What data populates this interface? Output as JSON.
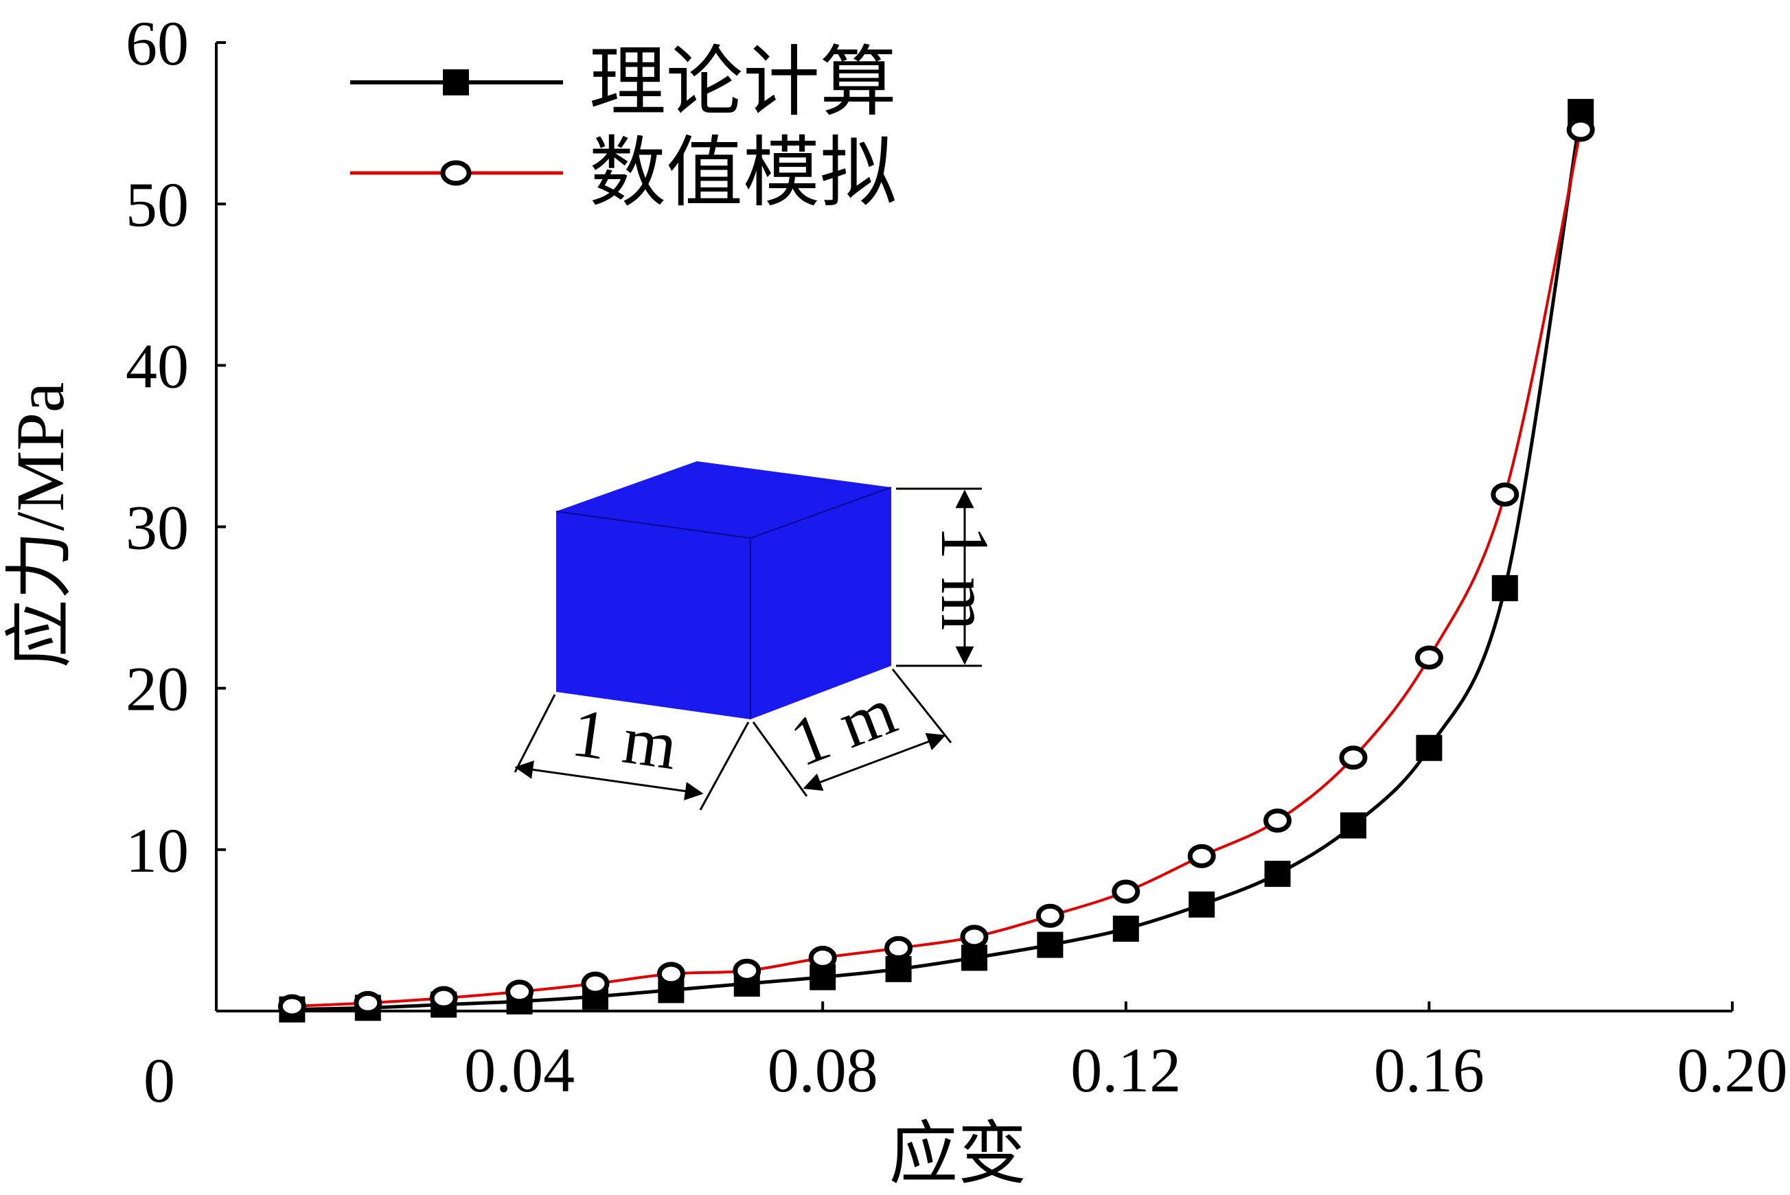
{
  "chart_data": {
    "type": "line",
    "title": "",
    "xlabel": "应变",
    "ylabel": "应力/MPa",
    "xlim": [
      0,
      0.2
    ],
    "ylim": [
      0,
      60
    ],
    "x_ticks": [
      0.04,
      0.08,
      0.12,
      0.16,
      0.2
    ],
    "x_tick_labels": [
      "0.04",
      "0.08",
      "0.12",
      "0.16",
      "0.20"
    ],
    "y_ticks": [
      10,
      20,
      30,
      40,
      50,
      60
    ],
    "y_tick_labels": [
      "10",
      "20",
      "30",
      "40",
      "50",
      "60"
    ],
    "origin_label": "0",
    "grid": false,
    "legend_position": "top-left",
    "series": [
      {
        "name": "理论计算",
        "color": "#000000",
        "marker": "filled-square",
        "x": [
          0.01,
          0.02,
          0.03,
          0.04,
          0.05,
          0.06,
          0.07,
          0.08,
          0.09,
          0.1,
          0.11,
          0.12,
          0.13,
          0.14,
          0.15,
          0.16,
          0.17,
          0.18
        ],
        "y": [
          0.1,
          0.2,
          0.4,
          0.6,
          0.9,
          1.3,
          1.7,
          2.1,
          2.6,
          3.3,
          4.1,
          5.1,
          6.6,
          8.5,
          11.5,
          16.3,
          26.2,
          55.7
        ]
      },
      {
        "name": "数值模拟",
        "color": "#e00000",
        "marker": "open-circle",
        "x": [
          0.01,
          0.02,
          0.03,
          0.04,
          0.05,
          0.06,
          0.07,
          0.08,
          0.09,
          0.1,
          0.11,
          0.12,
          0.13,
          0.14,
          0.15,
          0.16,
          0.17,
          0.18
        ],
        "y": [
          0.3,
          0.5,
          0.8,
          1.2,
          1.7,
          2.3,
          2.5,
          3.3,
          3.9,
          4.6,
          5.9,
          7.4,
          9.6,
          11.8,
          15.7,
          21.9,
          32.0,
          54.6
        ]
      }
    ],
    "annotations": {
      "inset": "blue-cube",
      "cube_color": "#1a1aee",
      "dimension_labels": [
        "1 m",
        "1 m",
        "1 m"
      ]
    }
  }
}
